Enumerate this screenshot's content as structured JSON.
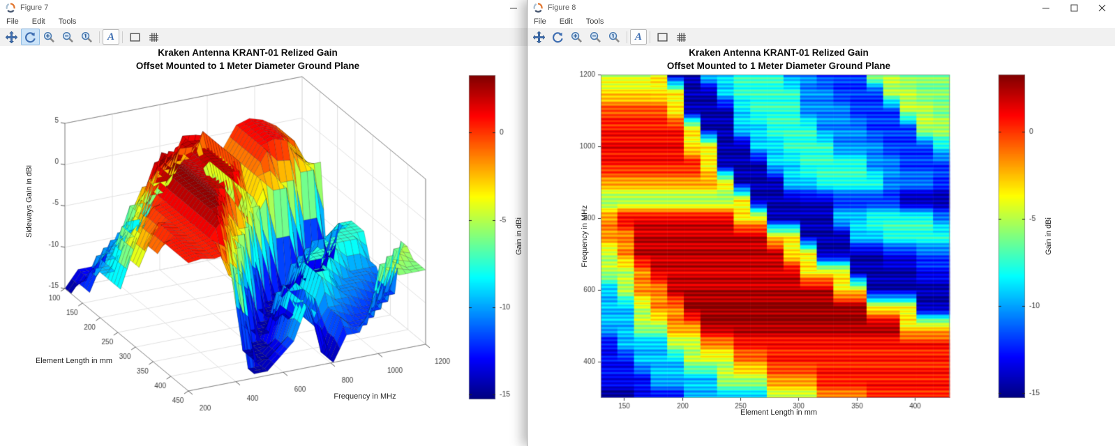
{
  "windows": [
    {
      "title": "Figure 7",
      "icon": "octave-figure-logo-icon",
      "menu": [
        "File",
        "Edit",
        "Tools"
      ],
      "toolbar": {
        "items": [
          "pan",
          "rotate-3d",
          "zoom-in",
          "zoom-out",
          "zoom-reset",
          "insert-text",
          "select-region",
          "toggle-grid"
        ],
        "active_item": "rotate-3d",
        "text_tool_glyph": "A"
      },
      "window_buttons": [
        "minimize"
      ]
    },
    {
      "title": "Figure 8",
      "icon": "octave-figure-logo-icon",
      "menu": [
        "File",
        "Edit",
        "Tools"
      ],
      "toolbar": {
        "items": [
          "pan",
          "rotate-3d",
          "zoom-in",
          "zoom-out",
          "zoom-reset",
          "insert-text",
          "select-region",
          "toggle-grid"
        ],
        "active_item": null,
        "text_tool_glyph": "A"
      },
      "window_buttons": [
        "minimize",
        "maximize",
        "close"
      ]
    }
  ],
  "chart_data": [
    {
      "type": "surface",
      "figure": "Figure 7",
      "title": [
        "Kraken Antenna KRANT-01 Relized Gain",
        "Offset Mounted to 1 Meter Diameter Ground Plane"
      ],
      "xlabel": "Element Length in mm",
      "x_ticks": [
        100,
        150,
        200,
        250,
        300,
        350,
        400,
        450
      ],
      "xlim": [
        100,
        450
      ],
      "ylabel": "Frequency in MHz",
      "y_ticks": [
        200,
        400,
        600,
        800,
        1000,
        1200
      ],
      "ylim": [
        200,
        1200
      ],
      "zlabel": "Sideways Gain in dBi",
      "z_ticks": [
        5,
        0,
        -5,
        -10,
        -15
      ],
      "zlim": [
        -15,
        5
      ],
      "colormap": "jet",
      "clim": [
        -15.3,
        3.3
      ],
      "colorbar": {
        "label": "Gain in dBi",
        "ticks": [
          0,
          -5,
          -10,
          -15
        ]
      },
      "grid": true,
      "x": [
        130,
        145,
        160,
        175,
        190,
        205,
        220,
        235,
        250,
        265,
        280,
        295,
        310,
        325,
        340,
        355,
        370,
        385,
        400,
        415,
        430
      ],
      "y": [
        300,
        350,
        400,
        450,
        500,
        550,
        600,
        650,
        700,
        750,
        800,
        850,
        900,
        950,
        1000,
        1050,
        1100,
        1150,
        1200
      ],
      "z": [
        [
          -15,
          -15,
          -13,
          -13,
          -13,
          -9.5,
          -9.5,
          -9.5,
          -9.5,
          -9.5,
          -5,
          -5,
          -5,
          -1.5,
          -1.5,
          -1.5,
          0.5,
          0.5,
          0.5,
          0.5,
          0.5
        ],
        [
          -13,
          -13,
          -13,
          -9.5,
          -9.5,
          -9.5,
          -9.5,
          -5,
          -5,
          -5,
          -1.5,
          -1.5,
          -1.5,
          0.7,
          0.7,
          0.7,
          0.7,
          0.7,
          0.7,
          0.7,
          0.7
        ],
        [
          -13,
          -13,
          -9.5,
          -9.5,
          -9.5,
          -5,
          -5,
          -5,
          -1.5,
          -1.5,
          0.4,
          0.4,
          0.4,
          0.4,
          0.4,
          0.4,
          0.4,
          0.4,
          0.4,
          0.4,
          0.4
        ],
        [
          -13,
          -9.5,
          -9.5,
          -9.5,
          -5,
          -5,
          -1.5,
          -1.5,
          0.7,
          0.7,
          0.7,
          0.7,
          0.7,
          0.7,
          0.7,
          0.7,
          0.7,
          0.7,
          0.7,
          0.7,
          0.7
        ],
        [
          -9.5,
          -9.5,
          -5,
          -5,
          -1.5,
          -1.5,
          2.7,
          2.7,
          2.7,
          2.7,
          2.7,
          2.7,
          2.7,
          2.7,
          2.7,
          2.7,
          2.7,
          2.7,
          -3.5,
          -3.5,
          -3.5
        ],
        [
          -9.5,
          -9.5,
          -5,
          -1.5,
          -1.5,
          3,
          3,
          3,
          3,
          3,
          3,
          3,
          3,
          3,
          3,
          3,
          -3.5,
          -3.5,
          -3.5,
          -14.5,
          -14.5
        ],
        [
          -9.5,
          -5,
          -1.5,
          -1.5,
          2.2,
          2.2,
          2.2,
          2.2,
          2.2,
          2.2,
          2.2,
          2.2,
          2.2,
          2.2,
          -3.5,
          -3.5,
          -14.5,
          -14.5,
          -14.5,
          -14.5,
          -14.5
        ],
        [
          -5,
          -5,
          -1.5,
          1.7,
          1.7,
          1.7,
          1.7,
          1.7,
          1.7,
          1.7,
          1.7,
          1.7,
          -3.5,
          -3.5,
          -3.5,
          -14.5,
          -14.5,
          -14.5,
          -14.5,
          -13,
          -13
        ],
        [
          -5,
          -1.5,
          2.2,
          2.2,
          2.2,
          2.2,
          2.2,
          2.2,
          2.2,
          2.2,
          2.2,
          -3.5,
          -3.5,
          -14.5,
          -14.5,
          -14.5,
          -14.5,
          -13,
          -13,
          -11.5,
          -11.5
        ],
        [
          -1.5,
          -1.5,
          2,
          2,
          2,
          2,
          2,
          2,
          2,
          2,
          -3.5,
          -3.5,
          -14.5,
          -14.5,
          -14.5,
          -9,
          -9,
          -7.5,
          -7.5,
          -7.5,
          -7.5
        ],
        [
          -1.5,
          1.5,
          1.5,
          1.5,
          1.5,
          1.5,
          1.5,
          1.5,
          -3.5,
          -3.5,
          -14.5,
          -14.5,
          -14.5,
          -14.5,
          -9,
          -9,
          -7.5,
          -7.5,
          -7.5,
          -7.5,
          -10.5
        ],
        [
          -6,
          -6,
          -6,
          -6,
          -6,
          -6,
          -6,
          -6,
          -3.5,
          -14.5,
          -14.5,
          -14.5,
          -14,
          -14,
          -12.5,
          -12.5,
          -12.5,
          -12.5,
          -15,
          -15,
          -15
        ],
        [
          -1.8,
          -1.8,
          -1.8,
          -1.8,
          -1.8,
          -1.8,
          -1.8,
          -3.5,
          -14.5,
          -14.5,
          -14.5,
          -9,
          -9,
          -7.5,
          -7.5,
          -7.5,
          -7.5,
          -10.5,
          -10.5,
          -10.5,
          -12
        ],
        [
          0.7,
          0.7,
          0.7,
          0.7,
          0.7,
          0.7,
          -3.5,
          -14.5,
          -14.5,
          -14.5,
          -9,
          -9,
          -7.5,
          -7.5,
          -7.5,
          -7.5,
          -10.5,
          -10.5,
          -12,
          -12,
          -12
        ],
        [
          1.2,
          1.2,
          1.2,
          1.2,
          1.2,
          -3.5,
          -3.5,
          -14.5,
          -14.5,
          -9,
          -9,
          -7.5,
          -7.5,
          -7.5,
          -10.5,
          -10.5,
          -10.5,
          -12,
          -12,
          -12,
          -8.5
        ],
        [
          0.7,
          0.7,
          0.7,
          0.7,
          0.7,
          -3.5,
          -14.5,
          -14.5,
          -9,
          -9,
          -7.5,
          -7.5,
          -7.5,
          -10.5,
          -10.5,
          -10.5,
          -12,
          -12,
          -12,
          -5,
          -5
        ],
        [
          -0.3,
          -0.3,
          -0.3,
          -0.3,
          -3.5,
          -14.5,
          -14.5,
          -14.5,
          -9,
          -7.5,
          -7.5,
          -7.5,
          -10.5,
          -10.5,
          -10.5,
          -12,
          -12,
          -12,
          -5,
          -5,
          -6
        ],
        [
          -3.3,
          -3.3,
          -3.3,
          -3.5,
          -3.5,
          -14.5,
          -14.5,
          -9,
          -7.5,
          -7.5,
          -7.5,
          -7.5,
          -10.5,
          -10.5,
          -12,
          -12,
          -12,
          -5,
          -5,
          -6,
          -6
        ],
        [
          -4.8,
          -4.8,
          -4.8,
          -3.5,
          -14.5,
          -14.5,
          -9,
          -9,
          -7.5,
          -7.5,
          -7.5,
          -10.5,
          -10.5,
          -12,
          -12,
          -12,
          -5,
          -5,
          -6,
          -6,
          -6
        ]
      ]
    },
    {
      "type": "heatmap",
      "figure": "Figure 8",
      "title": [
        "Kraken Antenna KRANT-01 Relized Gain",
        "Offset Mounted to 1 Meter Diameter Ground Plane"
      ],
      "xlabel": "Element Length in mm",
      "x_ticks": [
        150,
        200,
        250,
        300,
        350,
        400
      ],
      "xlim": [
        130,
        430
      ],
      "ylabel": "Frequency in MHz",
      "y_ticks": [
        400,
        600,
        800,
        1000,
        1200
      ],
      "ylim": [
        300,
        1200
      ],
      "colormap": "jet",
      "clim": [
        -15.3,
        3.3
      ],
      "colorbar": {
        "label": "Gain in dBi",
        "ticks": [
          0,
          -5,
          -10,
          -15
        ]
      },
      "values_note": "same gain grid as chart_data[0] (x, y, z arrays)"
    }
  ]
}
